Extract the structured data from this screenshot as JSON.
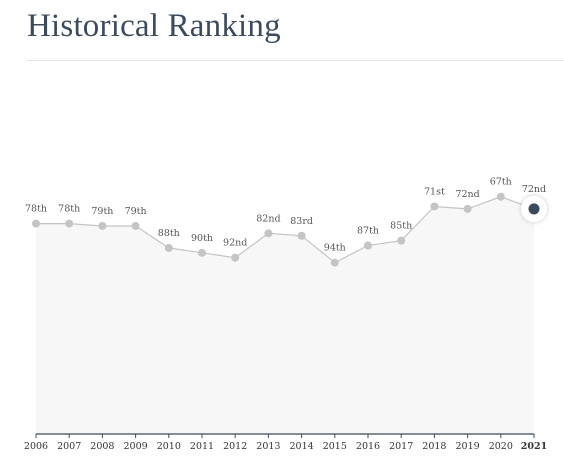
{
  "page": {
    "title": "Historical Ranking"
  },
  "chart_data": {
    "type": "line",
    "title": "Historical Ranking",
    "x": [
      "2006",
      "2007",
      "2008",
      "2009",
      "2010",
      "2011",
      "2012",
      "2013",
      "2014",
      "2015",
      "2016",
      "2017",
      "2018",
      "2019",
      "2020",
      "2021"
    ],
    "ranks": [
      78,
      78,
      79,
      79,
      88,
      90,
      92,
      82,
      83,
      94,
      87,
      85,
      71,
      72,
      67,
      72
    ],
    "labels": [
      "78th",
      "78th",
      "79th",
      "79th",
      "88th",
      "90th",
      "92nd",
      "82nd",
      "83rd",
      "94th",
      "87th",
      "85th",
      "71st",
      "72nd",
      "67th",
      "72nd"
    ],
    "highlight_index": 15,
    "y_axis": "inverted rank (lower rank plotted higher)",
    "grid": false,
    "legend": "none",
    "colors": {
      "line": "#c4c4c4",
      "point": "#c4c4c4",
      "highlight": "#3b4b5e",
      "area": "#f7f7f7",
      "axis": "#3b4b5e"
    }
  }
}
